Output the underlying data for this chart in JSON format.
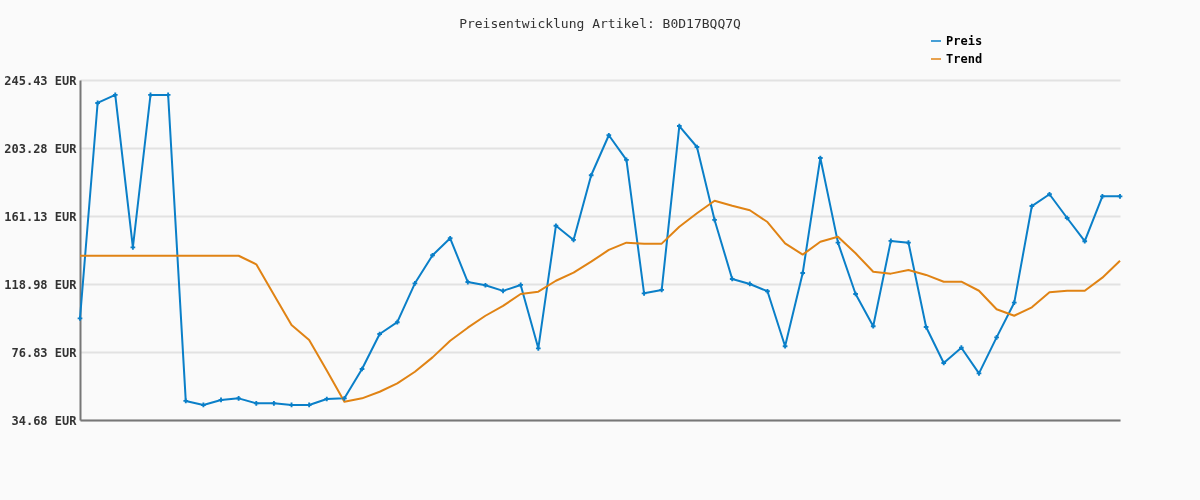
{
  "chart_data": {
    "type": "line",
    "title": "Preisentwicklung Artikel: B0D17BQQ7Q",
    "categories": [
      null,
      null,
      null,
      null,
      null,
      null,
      null,
      null,
      null,
      null,
      null,
      null,
      null,
      null,
      null,
      null,
      null,
      null,
      null,
      null,
      null,
      null,
      null,
      null,
      null,
      null,
      null,
      null,
      null,
      null,
      null,
      null,
      null,
      null,
      null,
      null,
      null,
      null,
      null,
      null,
      null,
      null,
      null,
      null,
      null,
      null,
      null,
      null,
      null,
      null,
      null,
      null,
      null,
      null,
      null,
      null,
      null,
      null,
      null,
      null
    ],
    "series": [
      {
        "name": "Preis",
        "color": "#0a7fc8",
        "marker": "cross",
        "values": [
          97.7,
          231.2,
          236.2,
          141.7,
          236.2,
          236.2,
          46.5,
          44.0,
          47.1,
          48.1,
          45.0,
          45.0,
          44.0,
          44.0,
          47.7,
          48.1,
          66.3,
          88.0,
          95.3,
          119.4,
          136.8,
          147.3,
          120.2,
          118.2,
          114.7,
          118.4,
          79.1,
          155.1,
          146.3,
          186.4,
          211.2,
          195.9,
          113.2,
          115.3,
          216.9,
          203.9,
          158.7,
          122.1,
          119.0,
          114.5,
          80.4,
          125.8,
          197.1,
          144.6,
          112.8,
          92.8,
          145.7,
          144.6,
          92.3,
          70.0,
          79.5,
          63.6,
          85.9,
          107.4,
          167.3,
          174.6,
          159.9,
          145.5,
          173.3,
          173.3
        ]
      },
      {
        "name": "Trend",
        "color": "#e08314",
        "marker": "none",
        "values": [
          136.5,
          136.5,
          136.5,
          136.5,
          136.5,
          136.5,
          136.5,
          136.5,
          136.5,
          136.5,
          131.2,
          112.3,
          93.6,
          84.3,
          65.3,
          46.0,
          48.1,
          52.2,
          57.4,
          64.6,
          73.5,
          83.8,
          91.9,
          99.3,
          105.4,
          112.8,
          114.2,
          121.0,
          126.0,
          132.8,
          140.1,
          144.6,
          144.0,
          144.0,
          154.5,
          162.8,
          170.6,
          167.5,
          164.7,
          157.4,
          144.2,
          137.2,
          145.2,
          148.3,
          138.0,
          126.6,
          125.4,
          127.7,
          124.6,
          120.4,
          120.4,
          114.8,
          103.3,
          99.3,
          104.5,
          113.8,
          114.8,
          114.8,
          122.9,
          133.4
        ]
      }
    ],
    "ylim": [
      34.68,
      245.43
    ],
    "yticks": [
      {
        "value": 34.68,
        "label": "34.68 EUR"
      },
      {
        "value": 76.83,
        "label": "76.83 EUR"
      },
      {
        "value": 118.98,
        "label": "118.98 EUR"
      },
      {
        "value": 161.13,
        "label": "161.13 EUR"
      },
      {
        "value": 203.28,
        "label": "203.28 EUR"
      },
      {
        "value": 245.43,
        "label": "245.43 EUR"
      }
    ],
    "grid": "y",
    "legend": "top right",
    "tick_labels": "y"
  }
}
